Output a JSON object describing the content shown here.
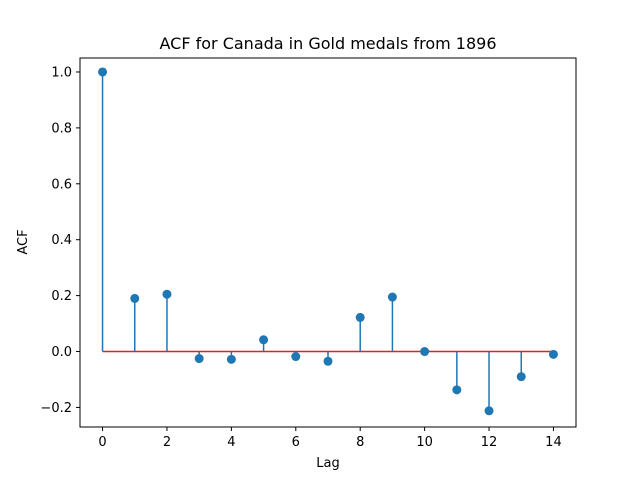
{
  "chart_data": {
    "type": "stem",
    "title": "ACF for Canada in Gold medals from 1896",
    "xlabel": "Lag",
    "ylabel": "ACF",
    "x": [
      0,
      1,
      2,
      3,
      4,
      5,
      6,
      7,
      8,
      9,
      10,
      11,
      12,
      13,
      14
    ],
    "values": [
      1.0,
      0.19,
      0.205,
      -0.025,
      -0.028,
      0.042,
      -0.018,
      -0.035,
      0.122,
      0.195,
      0.0,
      -0.137,
      -0.212,
      -0.09,
      -0.01
    ],
    "xlim": [
      -0.7,
      14.7
    ],
    "ylim": [
      -0.27,
      1.05
    ],
    "xticks": [
      0,
      2,
      4,
      6,
      8,
      10,
      12,
      14
    ],
    "xtick_labels": [
      "0",
      "2",
      "4",
      "6",
      "8",
      "10",
      "12",
      "14"
    ],
    "yticks": [
      -0.2,
      0.0,
      0.2,
      0.4,
      0.6,
      0.8,
      1.0
    ],
    "ytick_labels": [
      "−0.2",
      "0.0",
      "0.2",
      "0.4",
      "0.6",
      "0.8",
      "1.0"
    ],
    "baseline": 0,
    "grid": false,
    "colors": {
      "stem": "#1f77b4",
      "marker": "#1f77b4",
      "baseline": "#d62728"
    }
  }
}
